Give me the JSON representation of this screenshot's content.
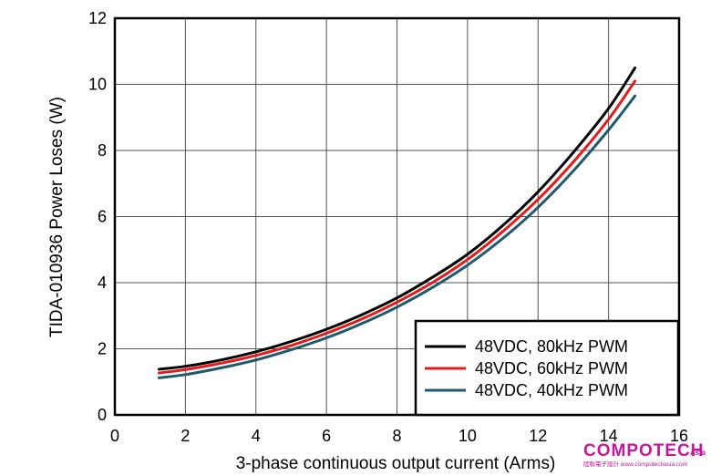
{
  "chart_data": {
    "type": "line",
    "title": "",
    "xlabel": "3-phase continuous output current (Arms)",
    "ylabel": "TIDA-010936 Power Loses (W)",
    "xlim": [
      0,
      16
    ],
    "ylim": [
      0,
      12
    ],
    "xticks": [
      "0",
      "2",
      "4",
      "6",
      "8",
      "10",
      "12",
      "14",
      "16"
    ],
    "yticks": [
      "0",
      "2",
      "4",
      "6",
      "8",
      "10",
      "12"
    ],
    "grid": true,
    "legend_position": "bottom-right",
    "series": [
      {
        "name": "48VDC, 80kHz PWM",
        "color": "#000000",
        "x": [
          1.25,
          2,
          3,
          4,
          5,
          6,
          7,
          8,
          9,
          10,
          11,
          12,
          13,
          14,
          14.75
        ],
        "y": [
          1.38,
          1.47,
          1.66,
          1.91,
          2.22,
          2.59,
          3.03,
          3.54,
          4.16,
          4.86,
          5.73,
          6.75,
          7.94,
          9.27,
          10.5
        ]
      },
      {
        "name": "48VDC, 60kHz PWM",
        "color": "#e31b1b",
        "x": [
          1.25,
          2,
          3,
          4,
          5,
          6,
          7,
          8,
          9,
          10,
          11,
          12,
          13,
          14,
          14.75
        ],
        "y": [
          1.27,
          1.37,
          1.56,
          1.8,
          2.1,
          2.47,
          2.9,
          3.41,
          4.0,
          4.7,
          5.55,
          6.52,
          7.65,
          8.94,
          10.1
        ]
      },
      {
        "name": "48VDC, 40kHz PWM",
        "color": "#1f5a6b",
        "x": [
          1.25,
          2,
          3,
          4,
          5,
          6,
          7,
          8,
          9,
          10,
          11,
          12,
          13,
          14,
          14.75
        ],
        "y": [
          1.12,
          1.22,
          1.42,
          1.66,
          1.97,
          2.33,
          2.76,
          3.26,
          3.85,
          4.53,
          5.34,
          6.28,
          7.38,
          8.62,
          9.65
        ]
      }
    ]
  },
  "watermark": {
    "logo_text": "COMPOTECH",
    "logo_suffix": "Asia",
    "tagline": "陸聯電子設計 www.compotechasia.com",
    "color": "#c2189a"
  }
}
